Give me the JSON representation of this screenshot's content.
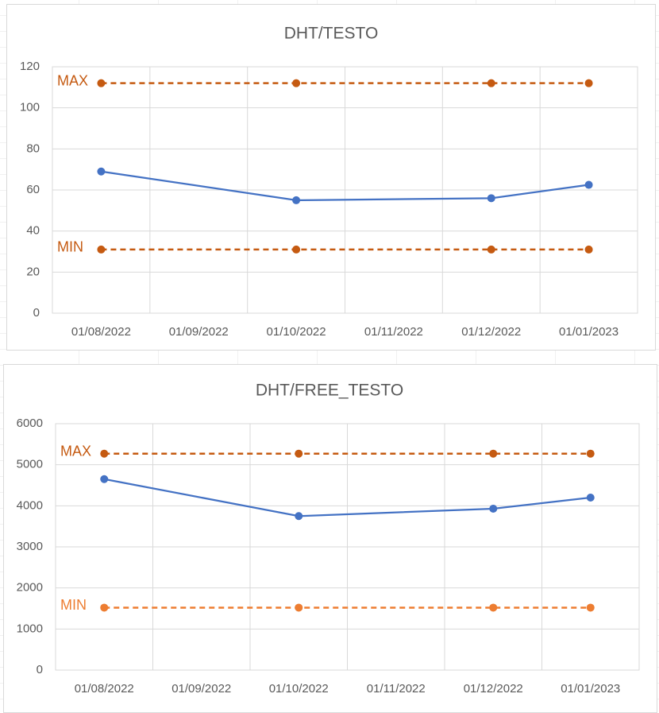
{
  "chart_data": [
    {
      "type": "line",
      "title": "DHT/TESTO",
      "xticks": [
        "01/08/2022",
        "01/09/2022",
        "01/10/2022",
        "01/11/2022",
        "01/12/2022",
        "01/01/2023"
      ],
      "x": [
        "01/08/2022",
        "01/10/2022",
        "01/12/2022",
        "01/01/2023"
      ],
      "series": [
        {
          "color": "#4472c4",
          "values": [
            69,
            55,
            56,
            62.5
          ]
        },
        {
          "name": "MAX",
          "color": "#c55a11",
          "dashed": true,
          "values": [
            112,
            112,
            112,
            112
          ]
        },
        {
          "name": "MIN",
          "color": "#c55a11",
          "dashed": true,
          "values": [
            31,
            31,
            31,
            31
          ]
        }
      ],
      "ylim": [
        0,
        120
      ],
      "yticks": [
        0,
        20,
        40,
        60,
        80,
        100,
        120
      ],
      "grid": true
    },
    {
      "type": "line",
      "title": "DHT/FREE_TESTO",
      "xticks": [
        "01/08/2022",
        "01/09/2022",
        "01/10/2022",
        "01/11/2022",
        "01/12/2022",
        "01/01/2023"
      ],
      "x": [
        "01/08/2022",
        "01/10/2022",
        "01/12/2022",
        "01/01/2023"
      ],
      "series": [
        {
          "color": "#4472c4",
          "values": [
            4650,
            3750,
            3930,
            4200
          ]
        },
        {
          "name": "MAX",
          "color": "#c55a11",
          "dashed": true,
          "values": [
            5270,
            5270,
            5270,
            5270
          ]
        },
        {
          "name": "MIN",
          "color": "#ed7d31",
          "dashed": true,
          "values": [
            1520,
            1520,
            1520,
            1520
          ]
        }
      ],
      "ylim": [
        0,
        6000
      ],
      "yticks": [
        0,
        1000,
        2000,
        3000,
        4000,
        5000,
        6000
      ],
      "grid": true
    }
  ]
}
